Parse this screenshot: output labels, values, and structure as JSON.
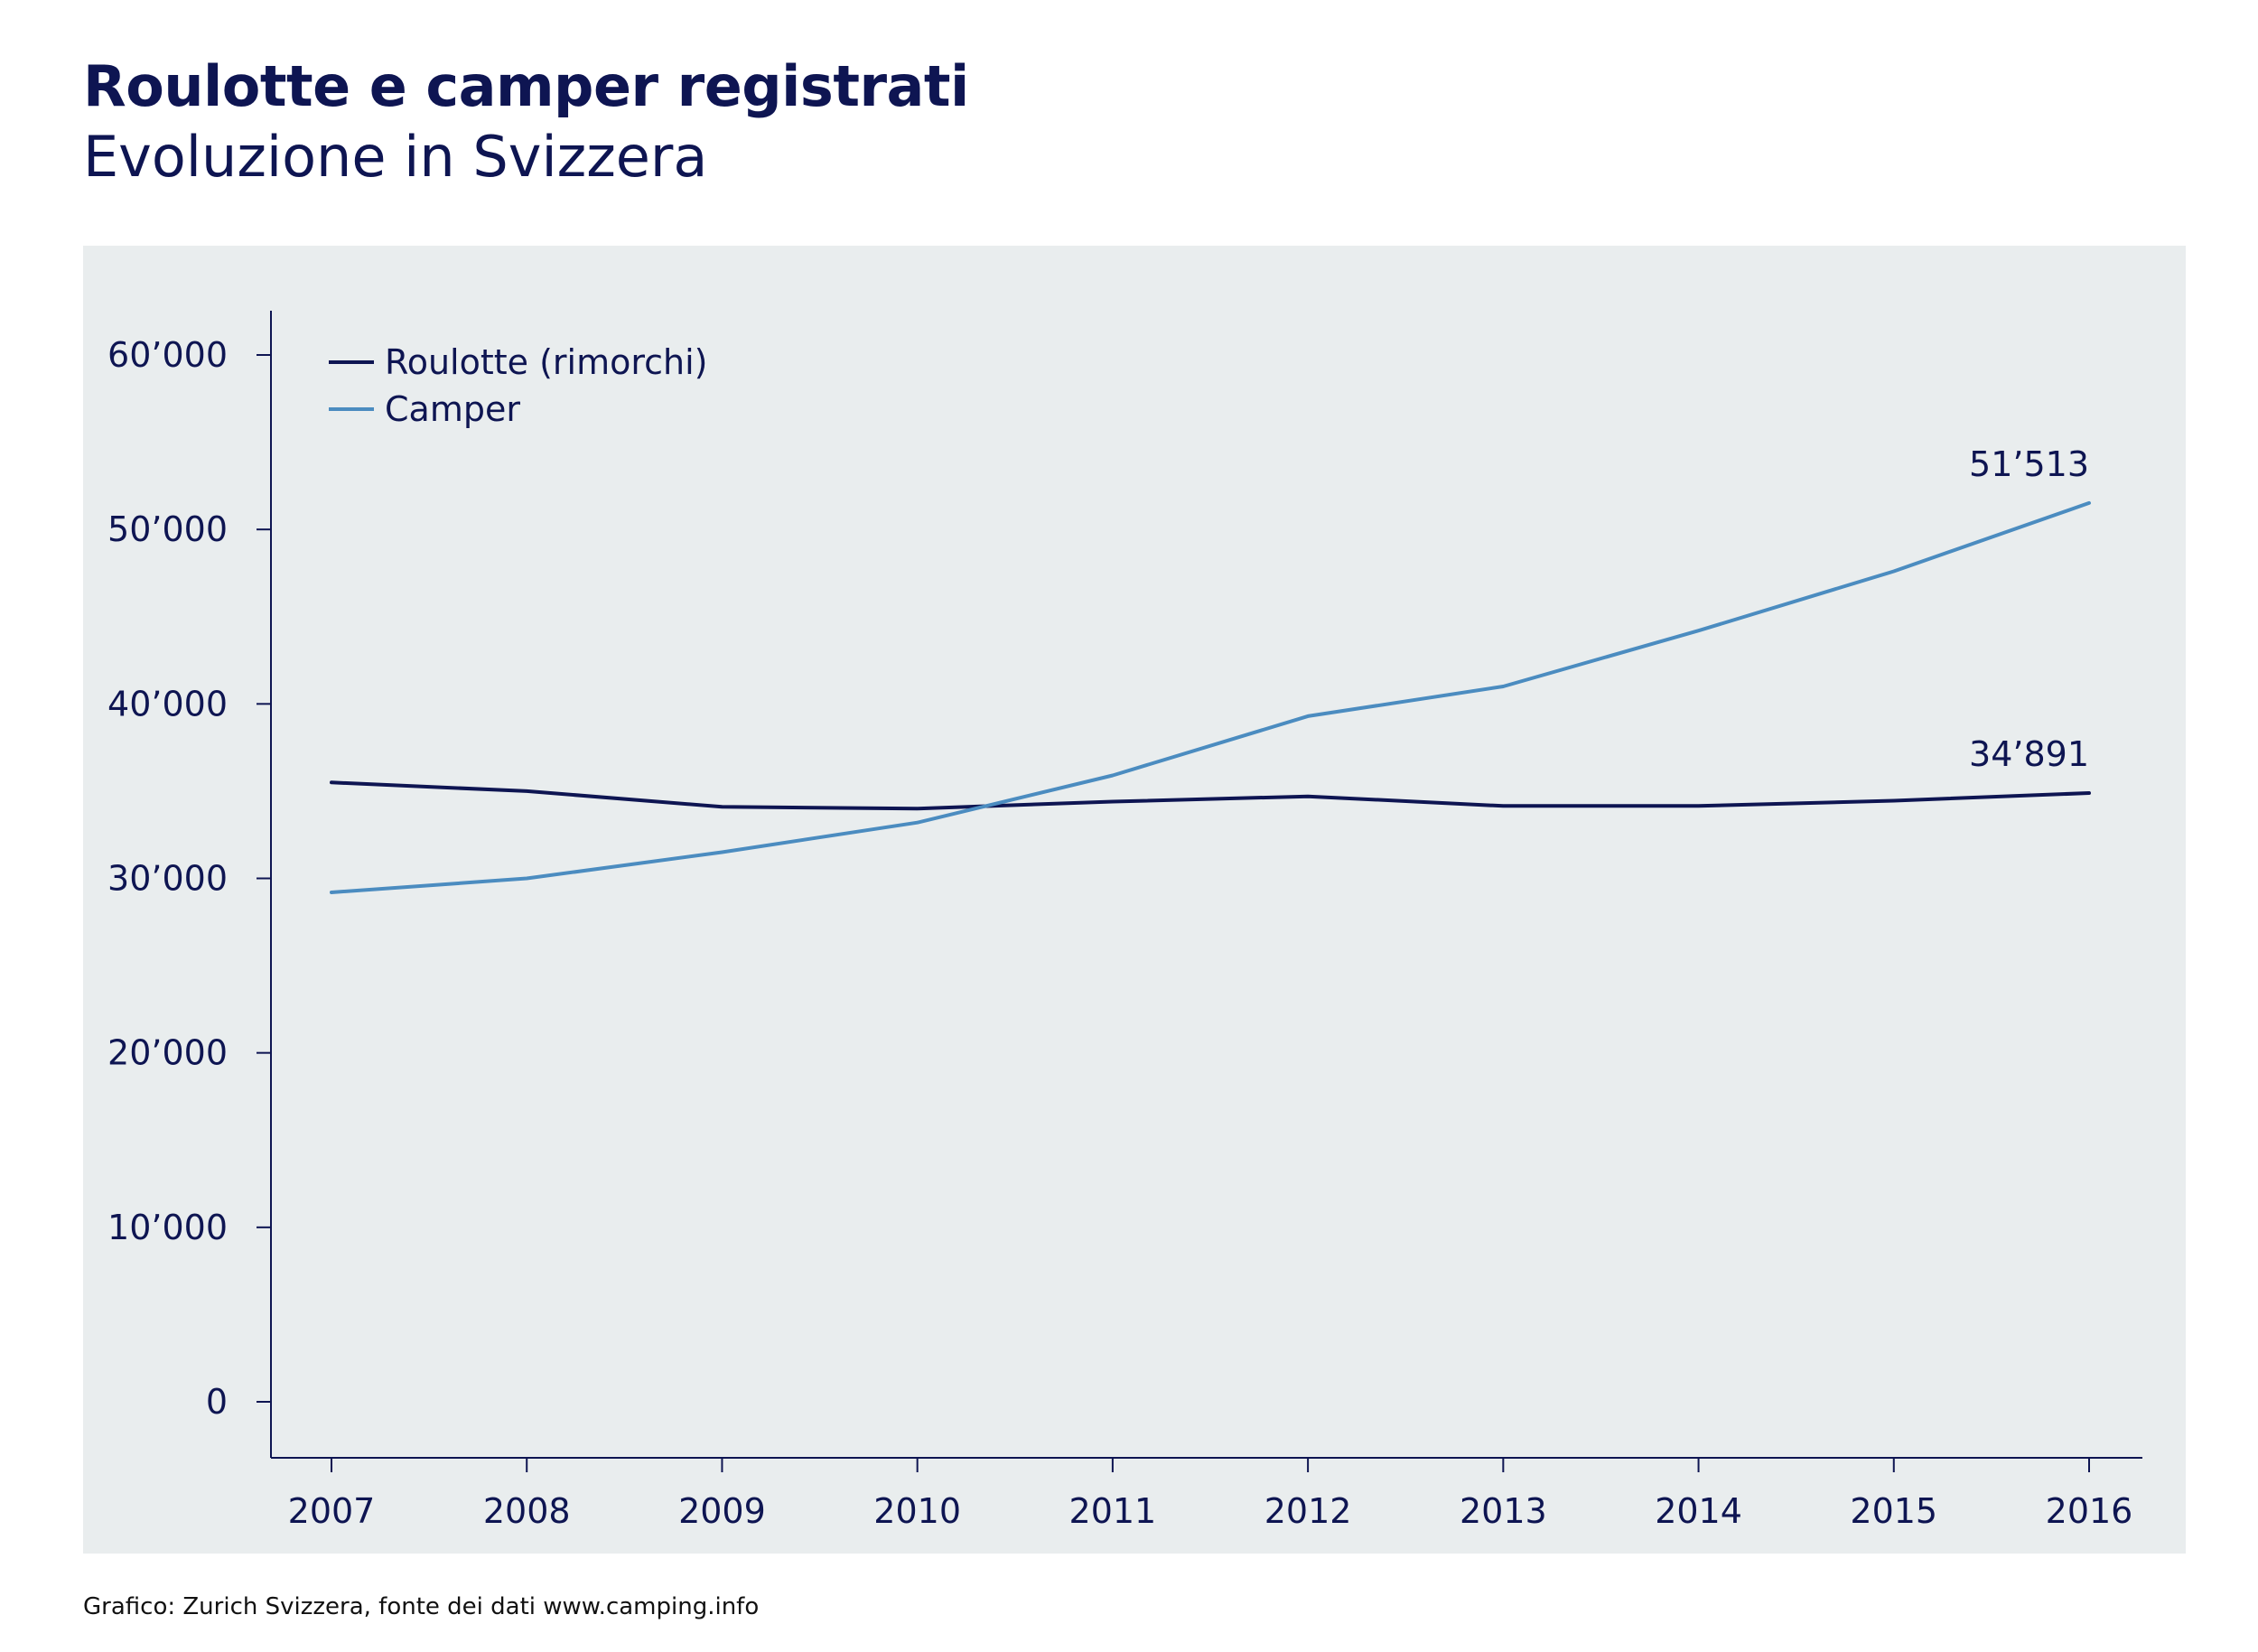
{
  "header": {
    "title": "Roulotte e camper registrati",
    "subtitle": "Evoluzione in Svizzera"
  },
  "footer": {
    "source": "Grafico: Zurich Svizzera, fonte dei dati www.camping.info"
  },
  "colors": {
    "roulotte": "#0e1552",
    "camper": "#4b8cc0",
    "panel": "#e9edee",
    "axis": "#0e1552"
  },
  "chart_data": {
    "type": "line",
    "title": "Roulotte e camper registrati",
    "subtitle": "Evoluzione in Svizzera",
    "xlabel": "",
    "ylabel": "",
    "categories": [
      "2007",
      "2008",
      "2009",
      "2010",
      "2011",
      "2012",
      "2013",
      "2014",
      "2015",
      "2016"
    ],
    "ylim": [
      0,
      60000
    ],
    "yticks": [
      0,
      10000,
      20000,
      30000,
      40000,
      50000,
      60000
    ],
    "ytick_labels": [
      "0",
      "10’000",
      "20’000",
      "30’000",
      "40’000",
      "50’000",
      "60’000"
    ],
    "grid": false,
    "legend_position": "top-left",
    "series": [
      {
        "name": "Roulotte (rimorchi)",
        "color": "#0e1552",
        "values": [
          35500,
          35000,
          34100,
          34000,
          34400,
          34700,
          34150,
          34150,
          34450,
          34891
        ],
        "end_label": "34’891"
      },
      {
        "name": "Camper",
        "color": "#4b8cc0",
        "values": [
          29200,
          30000,
          31500,
          33200,
          35900,
          39300,
          41000,
          44200,
          47600,
          51513
        ],
        "end_label": "51’513"
      }
    ]
  }
}
